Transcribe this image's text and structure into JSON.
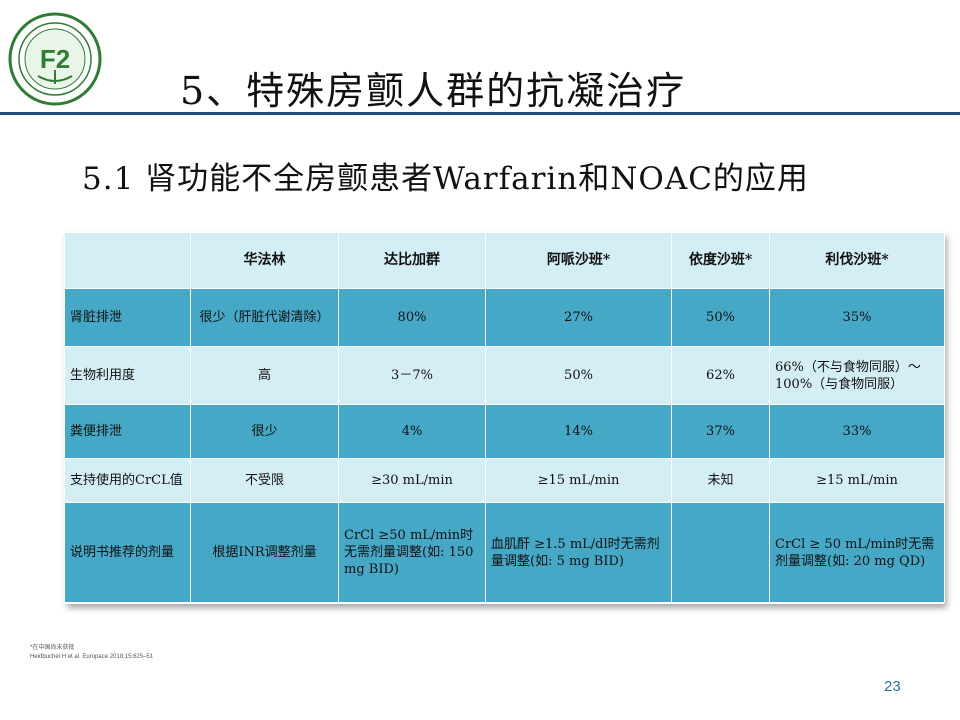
{
  "title": "5、特殊房颤人群的抗凝治疗",
  "subtitle": "5.1  肾功能不全房颤患者Warfarin和NOAC的应用",
  "table": {
    "headers": [
      "",
      "华法林",
      "达比加群",
      "阿哌沙班*",
      "依度沙班*",
      "利伐沙班*"
    ],
    "rows": [
      [
        "肾脏排泄",
        "很少（肝脏代谢清除）",
        "80%",
        "27%",
        "50%",
        "35%"
      ],
      [
        "生物利用度",
        "高",
        "3－7%",
        "50%",
        "62%",
        "66%（不与食物同服）～100%（与食物同服）"
      ],
      [
        "粪便排泄",
        "很少",
        "4%",
        "14%",
        "37%",
        "33%"
      ],
      [
        "支持使用的CrCL值",
        "不受限",
        "≥30 mL/min",
        "≥15 mL/min",
        "未知",
        "≥15 mL/min"
      ],
      [
        "说明书推荐的剂量",
        "根据INR调整剂量",
        "CrCl ≥50 mL/min时无需剂量调整(如: 150 mg BID)",
        "血肌酐 ≥1.5 mL/dl时无需剂量调整(如: 5 mg BID)",
        "",
        "CrCl ≥ 50 mL/min时无需剂量调整(如: 20 mg QD)"
      ]
    ]
  },
  "footnote": {
    "line1": "*在中国尚未获批",
    "line2": "Heidbuchel H et al. Europace 2018;15:625–51"
  },
  "page_number": "23",
  "colors": {
    "header_light": "#d4eef5",
    "row_dark": "#45a8c6",
    "rule": "#1f4e79",
    "logo_green": "#2e7d32"
  }
}
